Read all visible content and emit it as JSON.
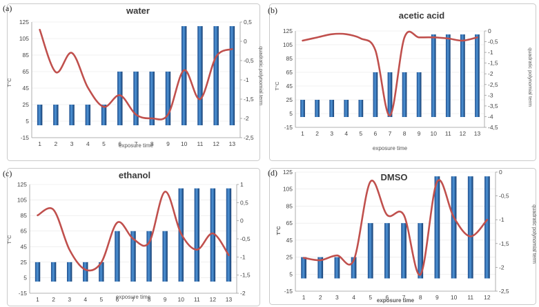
{
  "chart_data": [
    {
      "id": "water",
      "panel_label": "(a)",
      "type": "bar+line",
      "title": "water",
      "xlabel": "exposure time",
      "ylabel_left": "T°C",
      "ylabel_right": "quadratic polynomial term",
      "categories": [
        "1",
        "2",
        "3",
        "4",
        "5",
        "6",
        "7",
        "8",
        "9",
        "10",
        "11",
        "12",
        "13"
      ],
      "left_ticks": [
        "-15",
        "5",
        "25",
        "45",
        "65",
        "85",
        "105",
        "125"
      ],
      "left_range": [
        -15,
        125
      ],
      "right_ticks": [
        "0,5",
        "0",
        "-0,5",
        "-1",
        "-1,5",
        "-2",
        "-2,5"
      ],
      "right_range": [
        -2.5,
        0.5
      ],
      "series": [
        {
          "name": "T°C",
          "kind": "bar",
          "values": [
            25,
            25,
            25,
            25,
            25,
            65,
            65,
            65,
            65,
            120,
            120,
            120,
            120
          ]
        },
        {
          "name": "quadratic polynomial term",
          "kind": "line",
          "axis": "right",
          "values": [
            0.3,
            -0.8,
            -0.3,
            -1.2,
            -1.7,
            -1.4,
            -1.9,
            -2.0,
            -1.9,
            -0.75,
            -1.5,
            -0.4,
            -0.2
          ]
        }
      ]
    },
    {
      "id": "acetic",
      "panel_label": "(b)",
      "type": "bar+line",
      "title": "acetic acid",
      "xlabel": "exposure time",
      "ylabel_left": "T°C",
      "ylabel_right": "quadratic polynomial term",
      "categories": [
        "1",
        "2",
        "3",
        "4",
        "5",
        "6",
        "7",
        "8",
        "9",
        "10",
        "11",
        "12",
        "13"
      ],
      "left_ticks": [
        "-15",
        "5",
        "25",
        "45",
        "65",
        "85",
        "105",
        "125"
      ],
      "left_range": [
        -15,
        125
      ],
      "right_ticks": [
        "0",
        "-0,5",
        "-1",
        "-1,5",
        "-2",
        "-2,5",
        "-3",
        "-3,5",
        "-4",
        "-4,5"
      ],
      "right_range": [
        -4.5,
        0
      ],
      "series": [
        {
          "name": "T°C",
          "kind": "bar",
          "values": [
            25,
            25,
            25,
            25,
            25,
            65,
            65,
            65,
            65,
            120,
            120,
            120,
            120
          ]
        },
        {
          "name": "quadratic polynomial term",
          "kind": "line",
          "axis": "right",
          "values": [
            -0.45,
            -0.3,
            -0.15,
            -0.15,
            -0.35,
            -0.9,
            -3.95,
            -0.3,
            -0.3,
            -0.3,
            -0.35,
            -0.45,
            -0.3
          ]
        }
      ]
    },
    {
      "id": "ethanol",
      "panel_label": "(c)",
      "type": "bar+line",
      "title": "ethanol",
      "xlabel": "exposure time",
      "ylabel_left": "T°C",
      "ylabel_right": "",
      "categories": [
        "1",
        "2",
        "3",
        "4",
        "5",
        "6",
        "7",
        "8",
        "9",
        "10",
        "11",
        "12",
        "13"
      ],
      "left_ticks": [
        "-15",
        "5",
        "25",
        "45",
        "65",
        "85",
        "105",
        "125"
      ],
      "left_range": [
        -15,
        125
      ],
      "right_ticks": [
        "1",
        "0,5",
        "0",
        "-0,5",
        "-1",
        "-1,5",
        "-2"
      ],
      "right_range": [
        -2,
        1
      ],
      "series": [
        {
          "name": "T°C",
          "kind": "bar",
          "values": [
            25,
            25,
            25,
            25,
            25,
            65,
            65,
            65,
            65,
            120,
            120,
            120,
            120
          ]
        },
        {
          "name": "quadratic polynomial term",
          "kind": "line",
          "axis": "right",
          "values": [
            0.15,
            0.3,
            -0.8,
            -1.35,
            -1.15,
            -0.05,
            -0.5,
            -0.6,
            0.8,
            -0.35,
            -0.8,
            -0.35,
            -0.95
          ]
        }
      ]
    },
    {
      "id": "dmso",
      "panel_label": "(d)",
      "type": "bar+line",
      "title": "DMSO",
      "xlabel": "exposure time",
      "ylabel_left": "T°C",
      "ylabel_right": "quadratic polynomial term",
      "categories": [
        "1",
        "2",
        "3",
        "4",
        "5",
        "6",
        "7",
        "8",
        "9",
        "10",
        "11",
        "12"
      ],
      "left_ticks": [
        "-15",
        "5",
        "25",
        "45",
        "65",
        "85",
        "105",
        "125"
      ],
      "left_range": [
        -15,
        125
      ],
      "right_ticks": [
        "0",
        "-0,5",
        "-1",
        "-1,5",
        "-2",
        "-2,5"
      ],
      "right_range": [
        -2.5,
        0
      ],
      "series": [
        {
          "name": "T°C",
          "kind": "bar",
          "values": [
            25,
            25,
            25,
            25,
            65,
            65,
            65,
            65,
            120,
            120,
            120,
            120
          ]
        },
        {
          "name": "quadratic polynomial term",
          "kind": "line",
          "axis": "right",
          "values": [
            -1.8,
            -1.85,
            -1.75,
            -1.85,
            -0.2,
            -0.9,
            -0.9,
            -2.15,
            -0.2,
            -0.95,
            -1.35,
            -1.0
          ]
        }
      ]
    }
  ]
}
